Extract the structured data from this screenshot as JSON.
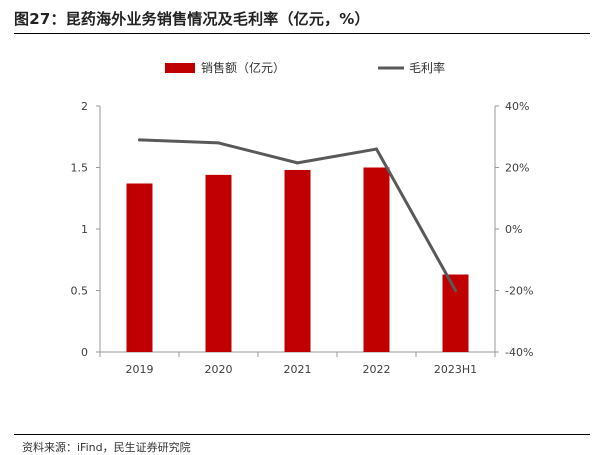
{
  "figure_title": "图27：昆药海外业务销售情况及毛利率（亿元，%）",
  "source": "资料来源：iFind，民生证券研究院",
  "chart_data": {
    "type": "bar",
    "categories": [
      "2019",
      "2020",
      "2021",
      "2022",
      "2023H1"
    ],
    "series": [
      {
        "name": "销售额（亿元）",
        "type": "bar",
        "axis": "left",
        "color": "#C00000",
        "values": [
          1.37,
          1.44,
          1.48,
          1.5,
          0.63
        ]
      },
      {
        "name": "毛利率",
        "type": "line",
        "axis": "right",
        "color": "#595959",
        "values": [
          29,
          28,
          21.5,
          26,
          -20
        ]
      }
    ],
    "y_left": {
      "min": 0,
      "max": 2,
      "ticks": [
        0,
        0.5,
        1,
        1.5,
        2
      ],
      "tick_labels": [
        "0",
        "0.5",
        "1",
        "1.5",
        "2"
      ]
    },
    "y_right": {
      "min": -40,
      "max": 40,
      "ticks": [
        -40,
        -20,
        0,
        20,
        40
      ],
      "tick_labels": [
        "-40%",
        "-20%",
        "0%",
        "20%",
        "40%"
      ],
      "unit": "%"
    },
    "grid": false,
    "legend_position": "top"
  }
}
